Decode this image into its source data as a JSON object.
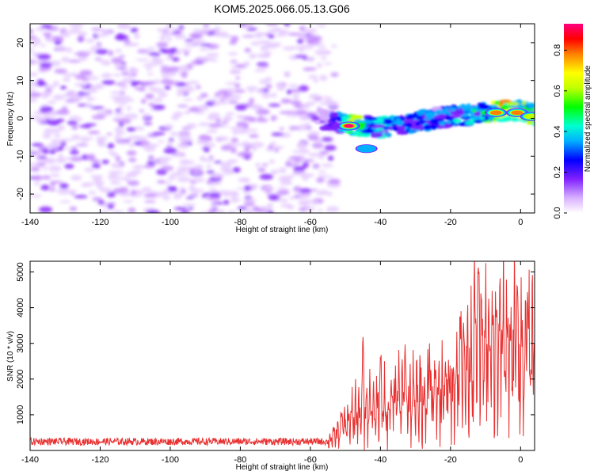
{
  "title": "KOM5.2025.066.05.13.G06",
  "chart_data": [
    {
      "type": "heatmap",
      "xlabel": "Height of straight line (km)",
      "ylabel": "Frequency (Hz)",
      "xlim": [
        -140,
        4
      ],
      "ylim": [
        -25,
        25
      ],
      "x_ticks": [
        "-140",
        "-120",
        "-100",
        "-80",
        "-60",
        "-40",
        "-20",
        "0"
      ],
      "y_ticks": [
        "-20",
        "-10",
        "0",
        "10",
        "20"
      ],
      "colorbar": {
        "label": "Normalized spectral amplitude",
        "range": [
          0,
          0.93
        ],
        "ticks": [
          "0.0",
          "0.2",
          "0.4",
          "0.6",
          "0.8"
        ],
        "colormap": [
          "#ffffff",
          "#d8b0ff",
          "#8020ff",
          "#0000ff",
          "#00b0ff",
          "#00ffd0",
          "#00ff00",
          "#c0ff00",
          "#ffff00",
          "#ff8000",
          "#ff0000",
          "#ff0080"
        ]
      },
      "noise_region": {
        "x": [
          -140,
          -53
        ],
        "y": [
          -25,
          25
        ],
        "amplitude": [
          0.0,
          0.1
        ]
      },
      "signal_track": {
        "x": [
          -57,
          -52,
          -48,
          -44,
          -40,
          -35,
          -30,
          -25,
          -20,
          -15,
          -10,
          -5,
          0,
          4
        ],
        "freq": [
          0,
          -1,
          -2,
          -2,
          -2.5,
          -2,
          -1,
          0,
          0.5,
          1,
          1.5,
          2,
          2,
          1
        ],
        "amplitude": [
          0.15,
          0.35,
          0.9,
          0.45,
          0.5,
          0.4,
          0.45,
          0.4,
          0.45,
          0.5,
          0.6,
          0.88,
          0.85,
          0.5
        ]
      },
      "hot_spots": [
        {
          "x": -49,
          "freq": -2,
          "amplitude": 0.93
        },
        {
          "x": -7,
          "freq": 1.5,
          "amplitude": 0.85
        },
        {
          "x": -1,
          "freq": 1.5,
          "amplitude": 0.85
        },
        {
          "x": 3,
          "freq": 0.5,
          "amplitude": 0.7
        },
        {
          "x": -44,
          "freq": -8,
          "amplitude": 0.4
        }
      ]
    },
    {
      "type": "line",
      "xlabel": "Height of straight line (km)",
      "ylabel": "SNR (10 * v/v)",
      "xlim": [
        -140,
        4
      ],
      "ylim": [
        0,
        5300
      ],
      "x_ticks": [
        "-140",
        "-120",
        "-100",
        "-80",
        "-60",
        "-40",
        "-20",
        "0"
      ],
      "y_ticks": [
        "1000",
        "2000",
        "3000",
        "4000",
        "5000"
      ],
      "color": "#e83030",
      "series": [
        {
          "x": [
            -140,
            -130,
            -120,
            -110,
            -100,
            -90,
            -80,
            -70,
            -60,
            -55,
            -52,
            -50,
            -48,
            -46,
            -44,
            -42,
            -40,
            -38,
            -36,
            -34,
            -32,
            -30,
            -28,
            -26,
            -24,
            -22,
            -20,
            -18,
            -16,
            -14,
            -12,
            -10,
            -8,
            -6,
            -4,
            -2,
            0,
            2,
            4
          ],
          "values": [
            200,
            200,
            200,
            200,
            180,
            200,
            200,
            200,
            200,
            250,
            500,
            700,
            900,
            1000,
            1200,
            1100,
            1300,
            1200,
            1500,
            1400,
            1300,
            1500,
            1500,
            1400,
            1600,
            1700,
            1800,
            2000,
            2300,
            2600,
            3000,
            2800,
            2700,
            2900,
            3000,
            2800,
            2500,
            2600,
            2800
          ],
          "peaks": [
            {
              "x": -51,
              "value": 1100
            },
            {
              "x": -45,
              "value": 3450
            },
            {
              "x": -40,
              "value": 2800
            },
            {
              "x": -38,
              "value": 3300
            },
            {
              "x": -33,
              "value": 3150
            },
            {
              "x": -30,
              "value": 3350
            },
            {
              "x": -26,
              "value": 3000
            },
            {
              "x": -22,
              "value": 3500
            },
            {
              "x": -17,
              "value": 3900
            },
            {
              "x": -13,
              "value": 4100
            },
            {
              "x": -12,
              "value": 5300
            },
            {
              "x": -5,
              "value": 3650
            },
            {
              "x": -1,
              "value": 4900
            },
            {
              "x": 2,
              "value": 4600
            },
            {
              "x": 4,
              "value": 3800
            }
          ],
          "noise_floor": [
            0,
            350
          ],
          "dips": [
            {
              "x": -38,
              "value": 0
            },
            {
              "x": -30,
              "value": 0
            },
            {
              "x": -22,
              "value": 500
            },
            {
              "x": 1,
              "value": 1500
            }
          ]
        }
      ]
    }
  ]
}
